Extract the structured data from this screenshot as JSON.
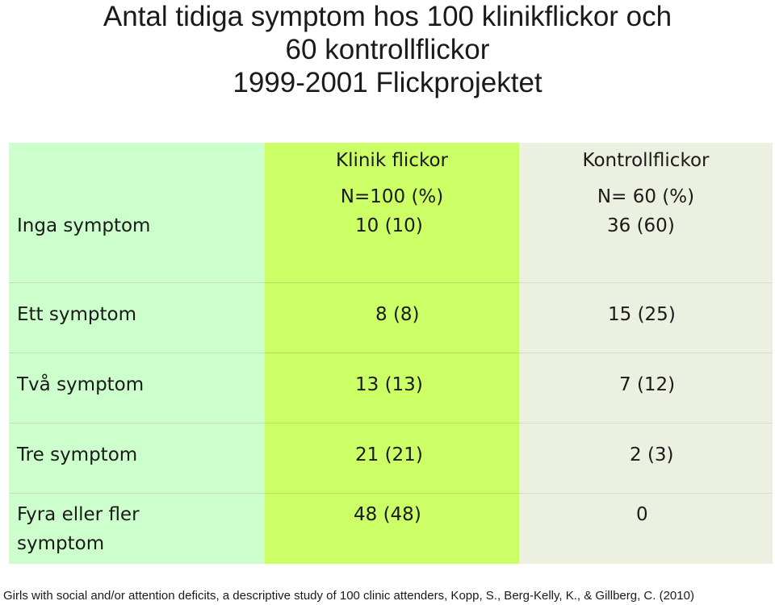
{
  "title": {
    "line1": "Antal tidiga symptom hos 100 klinikflickor och",
    "line2": "60 kontrollflickor",
    "line3": "1999-2001 Flickprojektet"
  },
  "table": {
    "header": {
      "col2_line1": "Klinik flickor",
      "col2_line2": "N=100 (%)",
      "col3_line1": "Kontrollflickor",
      "col3_line2": "N= 60 (%)"
    },
    "rows": [
      {
        "label": "Inga symptom",
        "clinic": "10 (10)",
        "control": "36 (60)"
      },
      {
        "label": "Ett symptom",
        "clinic": "8 (8)",
        "control": "15 (25)"
      },
      {
        "label": "Två symptom",
        "clinic": "13 (13)",
        "control": "7 (12)"
      },
      {
        "label": "Tre symptom",
        "clinic": "21 (21)",
        "control": "2 (3)"
      },
      {
        "label": "Fyra eller fler symptom",
        "clinic": "48 (48)",
        "control": "0"
      }
    ]
  },
  "footnote": "Girls with social and/or attention deficits, a descriptive study of 100 clinic attenders, Kopp, S., Berg-Kelly, K., & Gillberg, C. (2010)",
  "colors": {
    "label_column": "#ccffcc",
    "clinic_column": "#ccff66",
    "control_column": "#ecf0e0"
  }
}
